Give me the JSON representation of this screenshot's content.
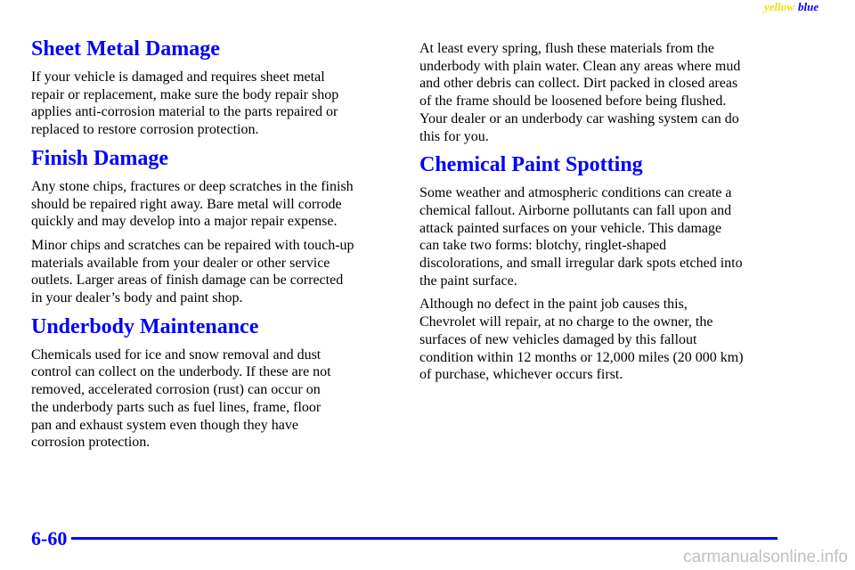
{
  "header": {
    "tag_yellow": "yellow",
    "tag_blue": "blue"
  },
  "columns": [
    [
      {
        "heading": "Sheet Metal Damage"
      },
      {
        "lines": [
          "If your vehicle is damaged and requires sheet metal",
          "repair or replacement, make sure the body repair shop",
          "applies anti-corrosion material to the parts repaired or",
          "replaced to restore corrosion protection."
        ]
      },
      {
        "heading": "Finish Damage"
      },
      {
        "lines": [
          "Any stone chips, fractures or deep scratches in the finish",
          "should be repaired right away. Bare metal will corrode",
          "quickly and may develop into a major repair expense."
        ]
      },
      {
        "lines": [
          "Minor chips and scratches can be repaired with touch-up",
          "materials available from your dealer or other service",
          "outlets. Larger areas of finish damage can be corrected",
          "in your dealer’s body and paint shop."
        ]
      },
      {
        "heading": "Underbody Maintenance"
      },
      {
        "lines": [
          "Chemicals used for ice and snow removal and dust",
          "control can collect on the underbody. If these are not",
          "removed, accelerated corrosion (rust) can occur on",
          "the underbody parts such as fuel lines, frame, floor",
          "pan and exhaust system even though they have",
          "corrosion protection."
        ]
      }
    ],
    [
      {
        "lines": [
          "At least every spring, flush these materials from the",
          "underbody with plain water. Clean any areas where mud",
          "and other debris can collect. Dirt packed in closed areas",
          "of the frame should be loosened before being flushed.",
          "Your dealer or an underbody car washing system can do",
          "this for you."
        ]
      },
      {
        "heading": "Chemical Paint Spotting"
      },
      {
        "lines": [
          "Some weather and atmospheric conditions can create a",
          "chemical fallout. Airborne pollutants can fall upon and",
          "attack painted surfaces on your vehicle. This damage",
          "can take two forms: blotchy, ringlet-shaped",
          "discolorations, and small irregular dark spots etched into",
          "the paint surface."
        ]
      },
      {
        "lines": [
          "Although no defect in the paint job causes this,",
          "Chevrolet will repair, at no charge to the owner, the",
          "surfaces of new vehicles damaged by this fallout",
          "condition within 12 months or 12,000 miles (20 000 km)",
          "of purchase, whichever occurs first."
        ]
      }
    ]
  ],
  "footer": {
    "page_number": "6-60",
    "watermark": "carmanualsonline.info"
  }
}
